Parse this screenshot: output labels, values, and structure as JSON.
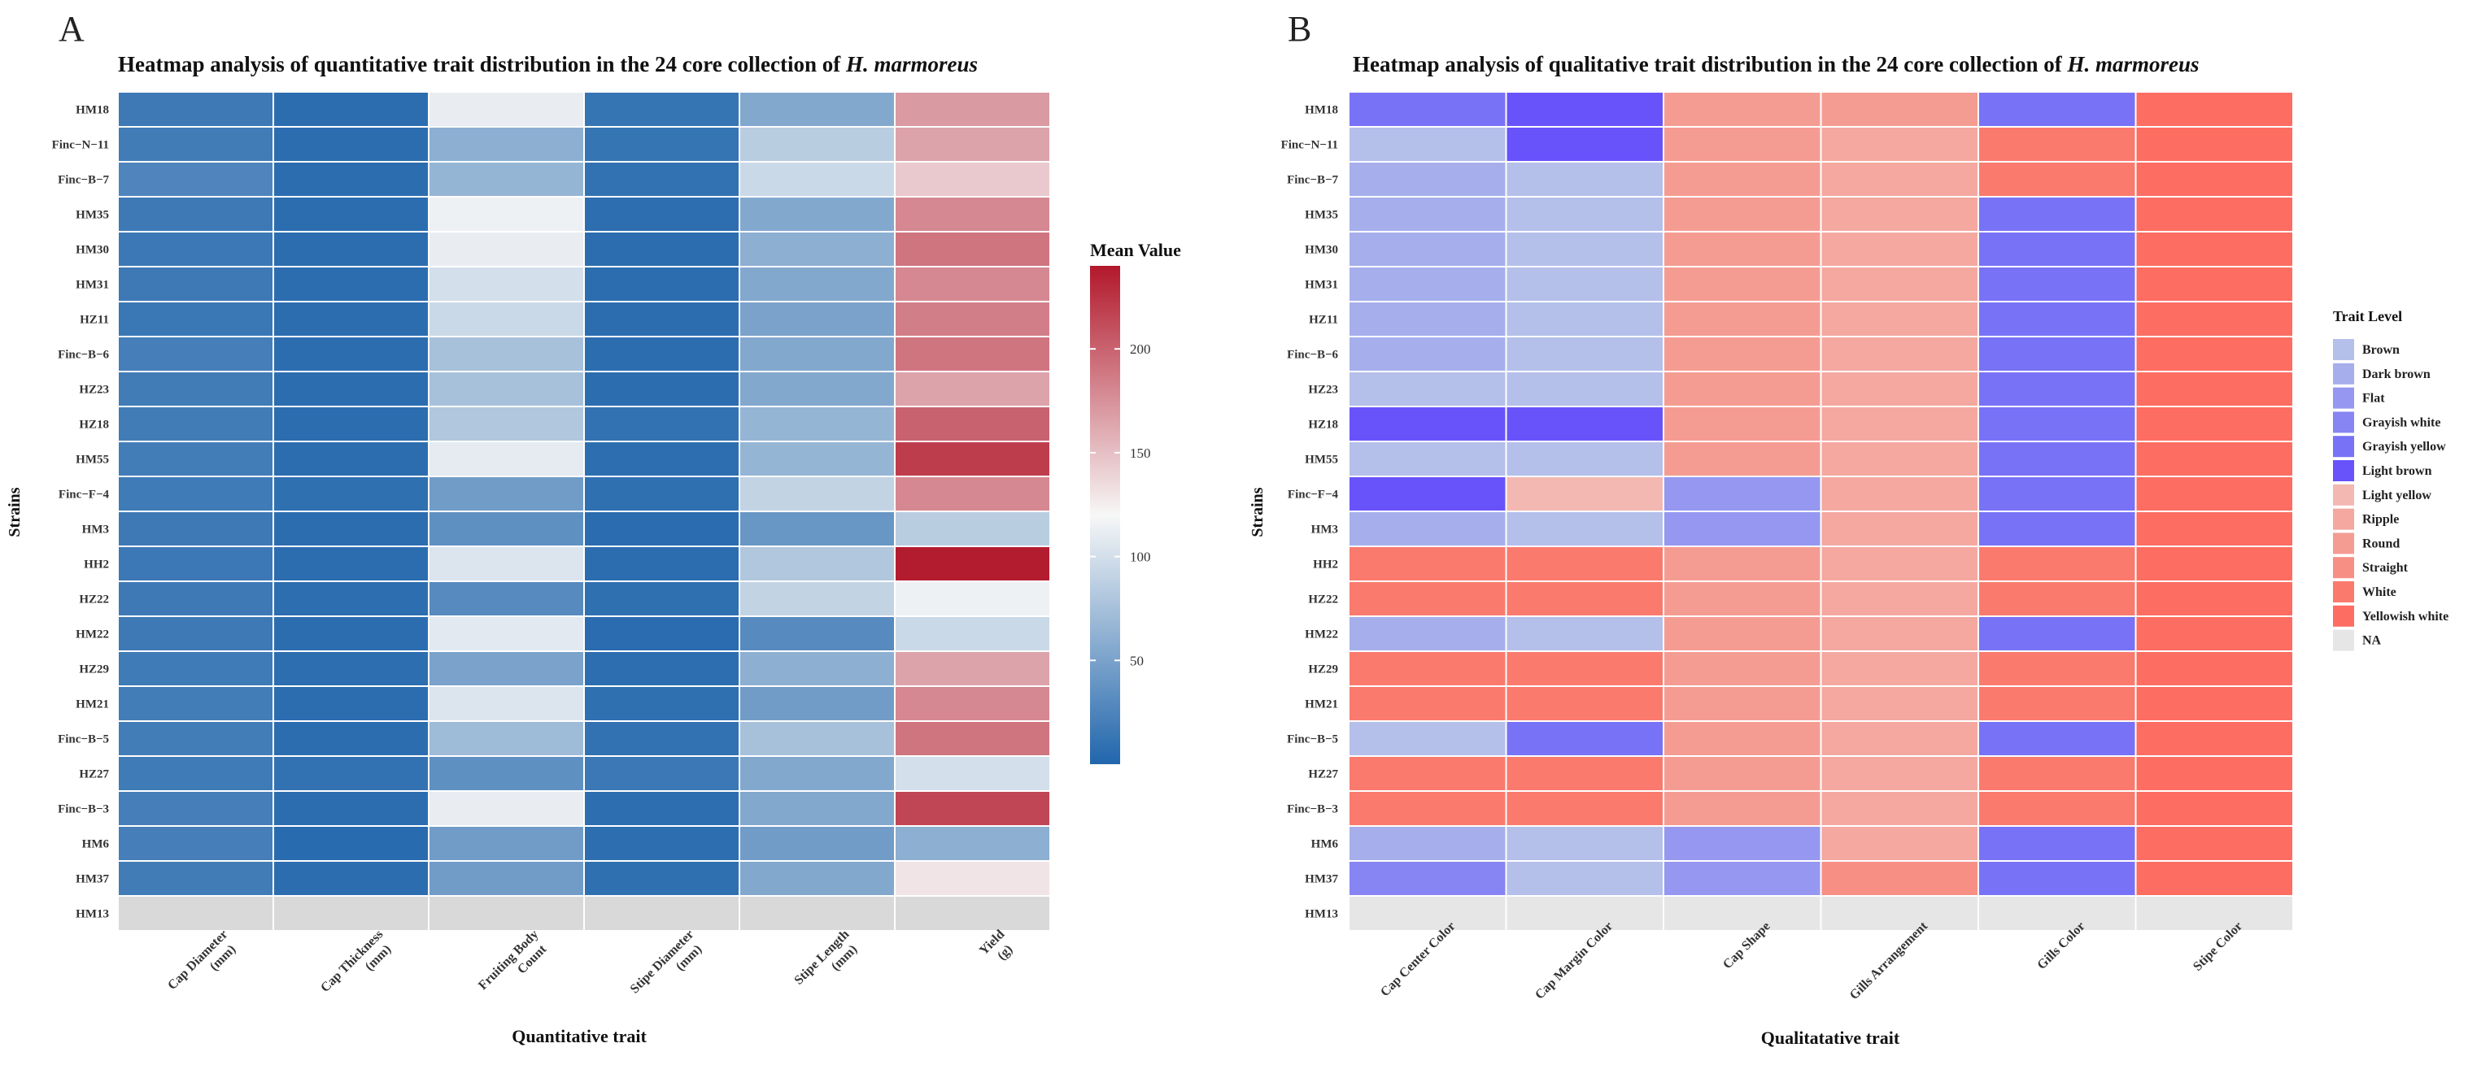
{
  "panels": [
    {
      "label": "A",
      "chart_data": {
        "type": "heatmap",
        "title_prefix": "Heatmap analysis of quantitative trait distribution in the 24 core collection of ",
        "title_italic": "H. marmoreus",
        "xlabel": "Quantitative trait",
        "ylabel": "Strains",
        "columns": [
          [
            "Cap Diameter",
            "(mm)"
          ],
          [
            "Cap Thickness",
            "(mm)"
          ],
          [
            "Fruiting Body",
            "Count"
          ],
          [
            "Stipe Diameter",
            "(mm)"
          ],
          [
            "Stipe Length",
            "(mm)"
          ],
          [
            "Yield",
            "(g)"
          ]
        ],
        "rows": [
          "HM18",
          "Finc−N−11",
          "Finc−B−7",
          "HM35",
          "HM30",
          "HM31",
          "HZ11",
          "Finc−B−6",
          "HZ23",
          "HZ18",
          "HM55",
          "Finc−F−4",
          "HM3",
          "HH2",
          "HZ22",
          "HM22",
          "HZ29",
          "HM21",
          "Finc−B−5",
          "HZ27",
          "Finc−B−3",
          "HM6",
          "HM37",
          "HM13"
        ],
        "values": [
          [
            16,
            6,
            112,
            12,
            55,
            170
          ],
          [
            18,
            6,
            60,
            12,
            85,
            165
          ],
          [
            26,
            6,
            65,
            10,
            95,
            145
          ],
          [
            16,
            6,
            115,
            7,
            55,
            180
          ],
          [
            15,
            6,
            112,
            6,
            60,
            190
          ],
          [
            16,
            6,
            100,
            6,
            55,
            180
          ],
          [
            14,
            6,
            95,
            6,
            50,
            185
          ],
          [
            20,
            6,
            75,
            6,
            55,
            190
          ],
          [
            18,
            6,
            75,
            6,
            55,
            165
          ],
          [
            18,
            6,
            80,
            10,
            65,
            200
          ],
          [
            19,
            6,
            110,
            7,
            65,
            220
          ],
          [
            17,
            8,
            45,
            8,
            90,
            180
          ],
          [
            16,
            6,
            35,
            5,
            40,
            85
          ],
          [
            15,
            6,
            105,
            6,
            80,
            238
          ],
          [
            16,
            7,
            30,
            8,
            90,
            115
          ],
          [
            16,
            6,
            108,
            5,
            30,
            95
          ],
          [
            17,
            7,
            50,
            7,
            60,
            165
          ],
          [
            19,
            6,
            105,
            8,
            45,
            180
          ],
          [
            19,
            6,
            70,
            10,
            75,
            190
          ],
          [
            17,
            10,
            35,
            15,
            55,
            100
          ],
          [
            20,
            6,
            112,
            7,
            55,
            215
          ],
          [
            20,
            4,
            45,
            7,
            45,
            60
          ],
          [
            18,
            6,
            45,
            8,
            55,
            130
          ],
          [
            null,
            null,
            null,
            null,
            null,
            null
          ]
        ],
        "legend": {
          "title": "Mean Value",
          "ticks": [
            50,
            100,
            150,
            200
          ],
          "range": [
            0,
            240
          ]
        },
        "colors": {
          "low": "#2166ac",
          "mid": "#f7f7f7",
          "high": "#b2182b",
          "na": "#d9d9d9"
        }
      }
    },
    {
      "label": "B",
      "chart_data": {
        "type": "heatmap",
        "title_prefix": "Heatmap analysis of qualitative trait distribution in the 24 core collection of ",
        "title_italic": "H. marmoreus",
        "xlabel": "Qualitatative trait",
        "ylabel": "Strains",
        "columns": [
          "Cap Center Color",
          "Cap Margin Color",
          "Cap Shape",
          "Gills Arrangement",
          "Gills Color",
          "Stipe Color"
        ],
        "rows": [
          "HM18",
          "Finc−N−11",
          "Finc−B−7",
          "HM35",
          "HM30",
          "HM31",
          "HZ11",
          "Finc−B−6",
          "HZ23",
          "HZ18",
          "HM55",
          "Finc−F−4",
          "HM3",
          "HH2",
          "HZ22",
          "HM22",
          "HZ29",
          "HM21",
          "Finc−B−5",
          "HZ27",
          "Finc−B−3",
          "HM6",
          "HM37",
          "HM13"
        ],
        "levels": [
          "Brown",
          "Dark brown",
          "Flat",
          "Grayish white",
          "Grayish yellow",
          "Light brown",
          "Light yellow",
          "Ripple",
          "Round",
          "Straight",
          "White",
          "Yellowish white",
          "NA"
        ],
        "level_colors": [
          "#b4bfea",
          "#a6afec",
          "#9597f0",
          "#8784f3",
          "#7872f6",
          "#6853fb",
          "#f3b8b2",
          "#f4a8a0",
          "#f59c92",
          "#f78f84",
          "#fa7a6e",
          "#fd6d62",
          "#e6e6e6"
        ],
        "legend_title": "Trait Level",
        "values": [
          [
            "Grayish yellow",
            "Light brown",
            "Round",
            "Round",
            "Grayish yellow",
            "Yellowish white"
          ],
          [
            "Brown",
            "Light brown",
            "Round",
            "Ripple",
            "White",
            "Yellowish white"
          ],
          [
            "Dark brown",
            "Brown",
            "Round",
            "Ripple",
            "White",
            "Yellowish white"
          ],
          [
            "Dark brown",
            "Brown",
            "Round",
            "Ripple",
            "Grayish yellow",
            "Yellowish white"
          ],
          [
            "Dark brown",
            "Brown",
            "Round",
            "Ripple",
            "Grayish yellow",
            "Yellowish white"
          ],
          [
            "Dark brown",
            "Brown",
            "Round",
            "Ripple",
            "Grayish yellow",
            "Yellowish white"
          ],
          [
            "Dark brown",
            "Brown",
            "Round",
            "Ripple",
            "Grayish yellow",
            "Yellowish white"
          ],
          [
            "Dark brown",
            "Brown",
            "Round",
            "Ripple",
            "Grayish yellow",
            "Yellowish white"
          ],
          [
            "Brown",
            "Brown",
            "Round",
            "Ripple",
            "Grayish yellow",
            "Yellowish white"
          ],
          [
            "Light brown",
            "Light brown",
            "Round",
            "Ripple",
            "Grayish yellow",
            "Yellowish white"
          ],
          [
            "Brown",
            "Brown",
            "Round",
            "Ripple",
            "Grayish yellow",
            "Yellowish white"
          ],
          [
            "Light brown",
            "Light yellow",
            "Flat",
            "Ripple",
            "Grayish yellow",
            "Yellowish white"
          ],
          [
            "Dark brown",
            "Brown",
            "Flat",
            "Ripple",
            "Grayish yellow",
            "Yellowish white"
          ],
          [
            "White",
            "White",
            "Round",
            "Ripple",
            "White",
            "Yellowish white"
          ],
          [
            "White",
            "White",
            "Round",
            "Ripple",
            "White",
            "Yellowish white"
          ],
          [
            "Dark brown",
            "Brown",
            "Round",
            "Ripple",
            "Grayish yellow",
            "Yellowish white"
          ],
          [
            "White",
            "White",
            "Round",
            "Ripple",
            "White",
            "Yellowish white"
          ],
          [
            "White",
            "White",
            "Round",
            "Ripple",
            "White",
            "Yellowish white"
          ],
          [
            "Brown",
            "Grayish yellow",
            "Round",
            "Ripple",
            "Grayish yellow",
            "Yellowish white"
          ],
          [
            "White",
            "White",
            "Round",
            "Ripple",
            "White",
            "Yellowish white"
          ],
          [
            "White",
            "White",
            "Round",
            "Ripple",
            "White",
            "Yellowish white"
          ],
          [
            "Dark brown",
            "Brown",
            "Flat",
            "Ripple",
            "Grayish yellow",
            "Yellowish white"
          ],
          [
            "Grayish white",
            "Brown",
            "Flat",
            "Straight",
            "Grayish yellow",
            "Yellowish white"
          ],
          [
            "NA",
            "NA",
            "NA",
            "NA",
            "NA",
            "NA"
          ]
        ]
      }
    }
  ]
}
